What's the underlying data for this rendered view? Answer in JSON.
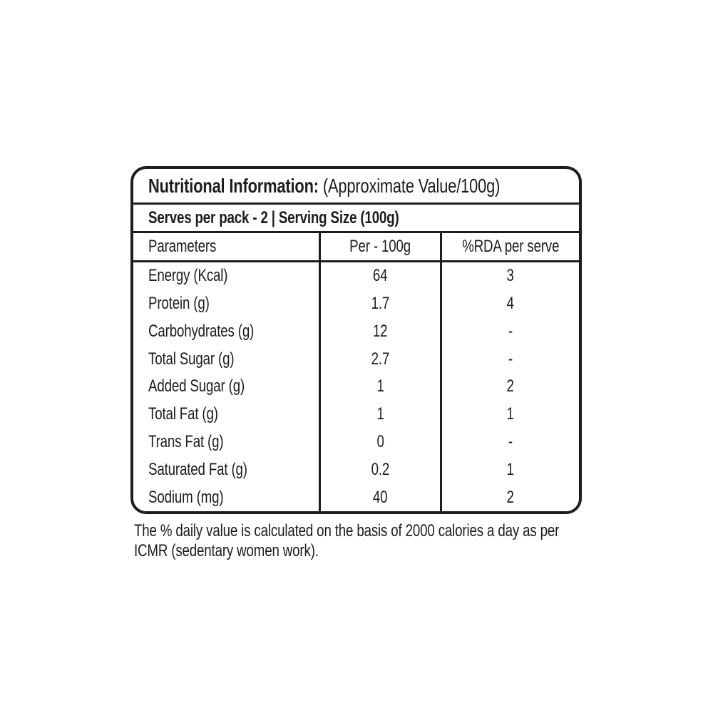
{
  "label": {
    "colors": {
      "ink": "#1d1d1b",
      "background": "#ffffff"
    },
    "title": {
      "bold": "Nutritional Information:",
      "normal": "(Approximate Value/100g)"
    },
    "serves_line": "Serves per pack - 2 | Serving Size (100g)",
    "table": {
      "columns": [
        "Parameters",
        "Per - 100g",
        "%RDA per serve"
      ],
      "rows": [
        {
          "parameter": "Energy (Kcal)",
          "per_100g": "64",
          "rda_per_serve": "3"
        },
        {
          "parameter": "Protein (g)",
          "per_100g": "1.7",
          "rda_per_serve": "4"
        },
        {
          "parameter": "Carbohydrates (g)",
          "per_100g": "12",
          "rda_per_serve": "-"
        },
        {
          "parameter": "Total Sugar (g)",
          "per_100g": "2.7",
          "rda_per_serve": "-"
        },
        {
          "parameter": "Added Sugar (g)",
          "per_100g": "1",
          "rda_per_serve": "2"
        },
        {
          "parameter": "Total Fat (g)",
          "per_100g": "1",
          "rda_per_serve": "1"
        },
        {
          "parameter": "Trans Fat (g)",
          "per_100g": "0",
          "rda_per_serve": "-"
        },
        {
          "parameter": "Saturated Fat (g)",
          "per_100g": "0.2",
          "rda_per_serve": "1"
        },
        {
          "parameter": "Sodium (mg)",
          "per_100g": "40",
          "rda_per_serve": "2"
        }
      ]
    },
    "footnote_lines": [
      "The % daily value is calculated on the basis of 2000 calories a day as per",
      "ICMR (sedentary women work)."
    ]
  }
}
